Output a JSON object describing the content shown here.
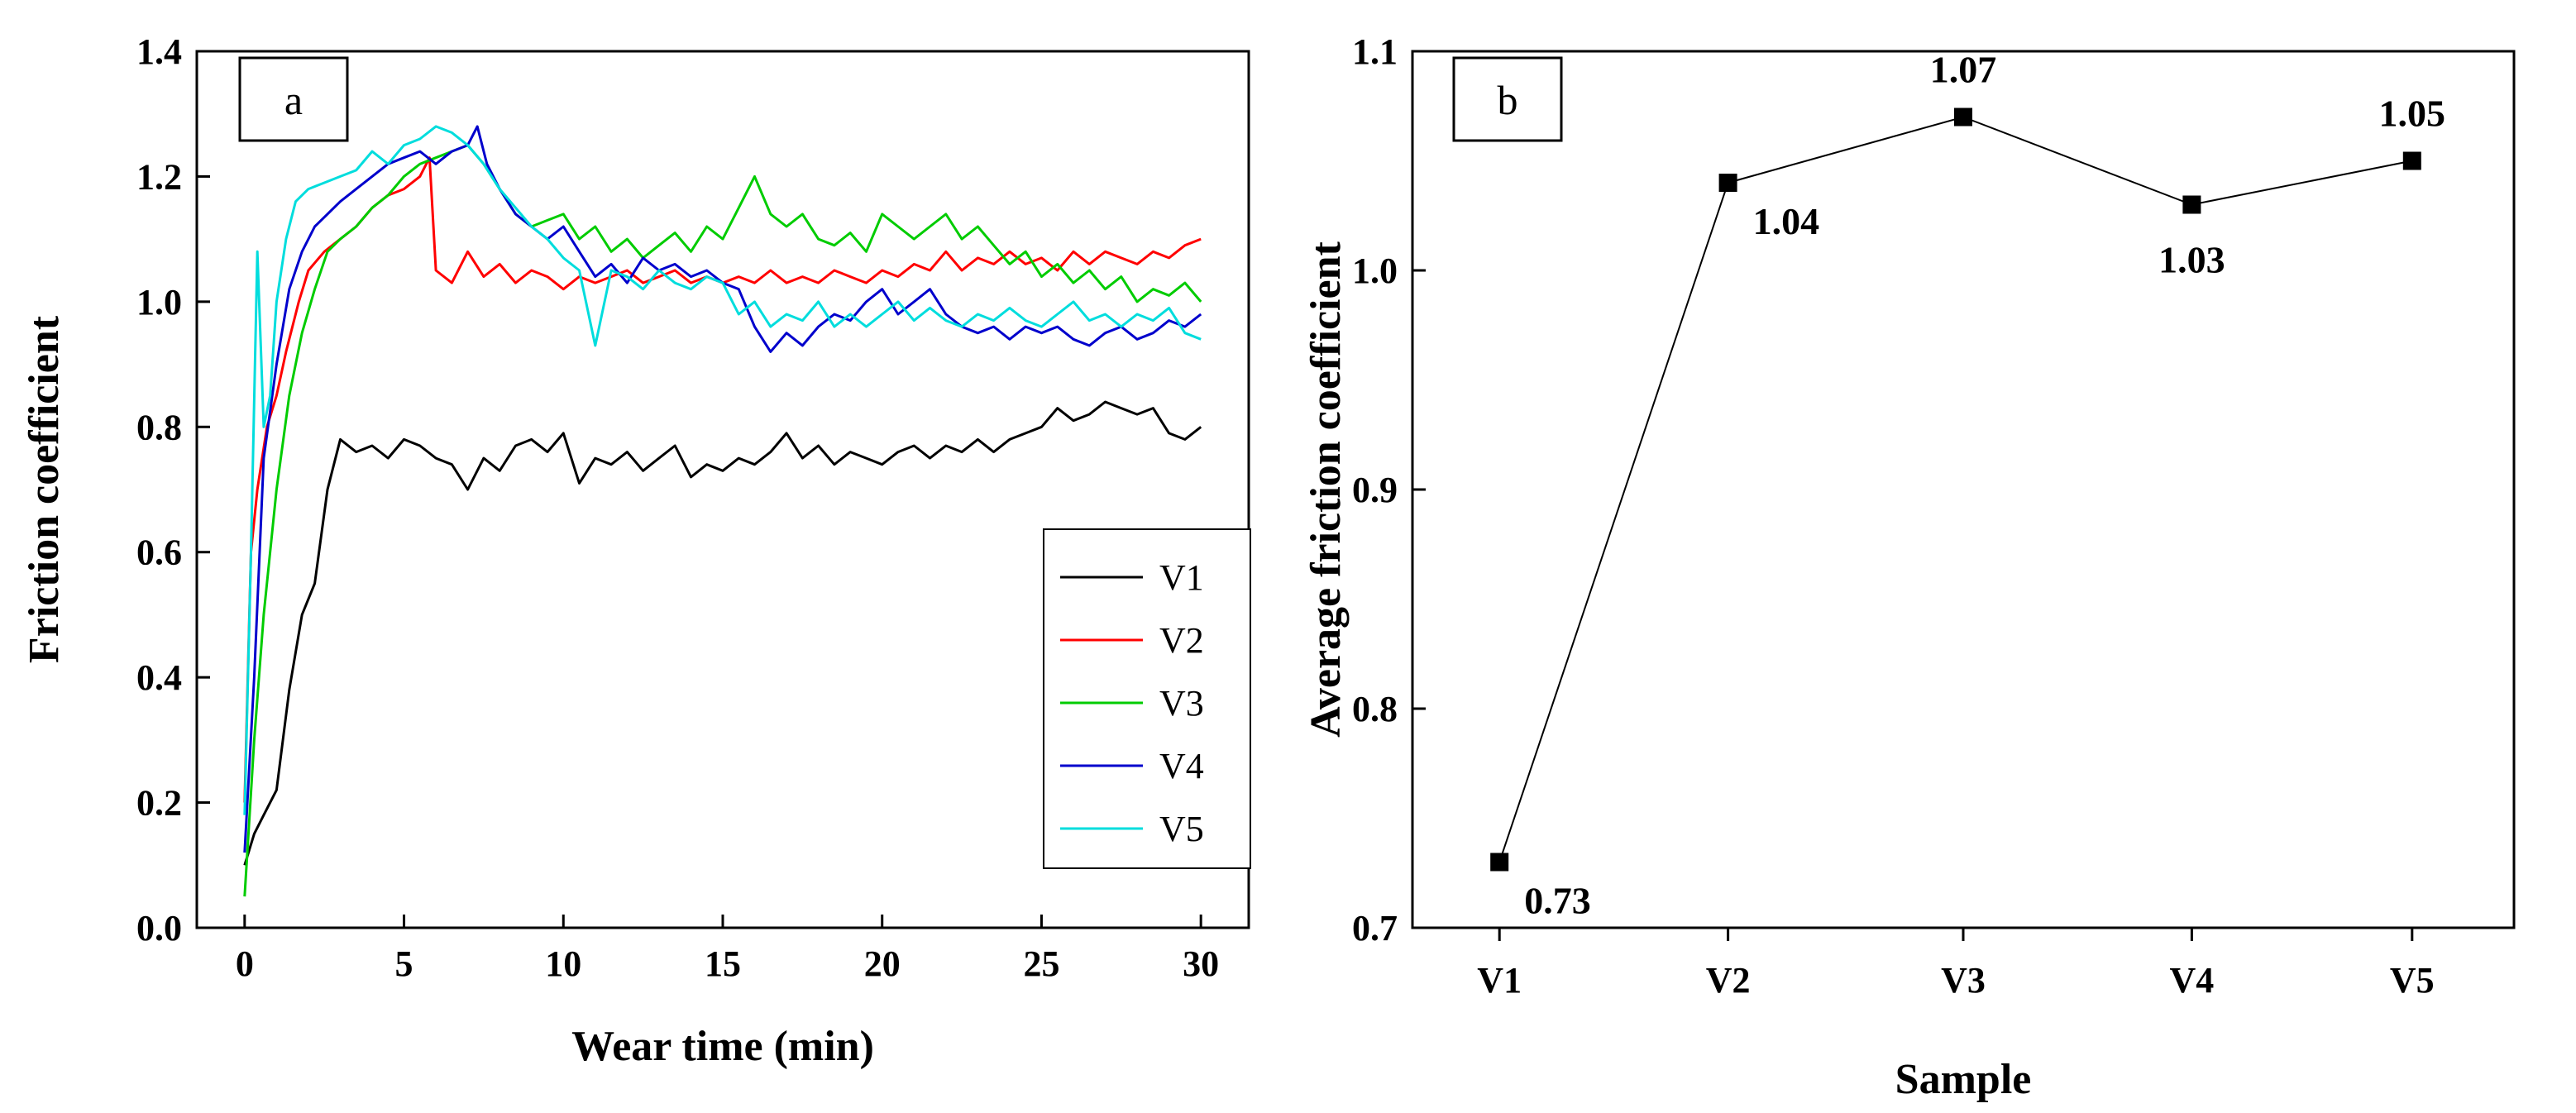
{
  "chart_data": [
    {
      "panel_label": "a",
      "type": "line",
      "xlabel": "Wear time (min)",
      "ylabel": "Friction coefficient",
      "xlim": [
        -1.5,
        31.5
      ],
      "ylim": [
        0.0,
        1.4
      ],
      "xticks": [
        "0",
        "5",
        "10",
        "15",
        "20",
        "25",
        "30"
      ],
      "yticks": [
        "0.0",
        "0.2",
        "0.4",
        "0.6",
        "0.8",
        "1.0",
        "1.2",
        "1.4"
      ],
      "legend_position": "right-middle",
      "series": [
        {
          "name": "V1",
          "color": "#000000",
          "x": [
            0,
            0.3,
            0.6,
            1.0,
            1.4,
            1.8,
            2.2,
            2.6,
            3.0,
            3.5,
            4,
            4.5,
            5,
            5.5,
            6,
            6.5,
            7,
            7.5,
            8,
            8.5,
            9,
            9.5,
            10,
            10.5,
            11,
            11.5,
            12,
            12.5,
            13,
            13.5,
            14,
            14.5,
            15,
            15.5,
            16,
            16.5,
            17,
            17.5,
            18,
            18.5,
            19,
            19.5,
            20,
            20.5,
            21,
            21.5,
            22,
            22.5,
            23,
            23.5,
            24,
            24.5,
            25,
            25.5,
            26,
            26.5,
            27,
            27.5,
            28,
            28.5,
            29,
            29.5,
            30
          ],
          "y": [
            0.1,
            0.15,
            0.18,
            0.22,
            0.38,
            0.5,
            0.55,
            0.7,
            0.78,
            0.76,
            0.77,
            0.75,
            0.78,
            0.77,
            0.75,
            0.74,
            0.7,
            0.75,
            0.73,
            0.77,
            0.78,
            0.76,
            0.79,
            0.71,
            0.75,
            0.74,
            0.76,
            0.73,
            0.75,
            0.77,
            0.72,
            0.74,
            0.73,
            0.75,
            0.74,
            0.76,
            0.79,
            0.75,
            0.77,
            0.74,
            0.76,
            0.75,
            0.74,
            0.76,
            0.77,
            0.75,
            0.77,
            0.76,
            0.78,
            0.76,
            0.78,
            0.79,
            0.8,
            0.83,
            0.81,
            0.82,
            0.84,
            0.83,
            0.82,
            0.83,
            0.79,
            0.78,
            0.8
          ]
        },
        {
          "name": "V2",
          "color": "#ff0000",
          "x": [
            0,
            0.2,
            0.4,
            0.7,
            1.0,
            1.3,
            1.7,
            2.0,
            2.5,
            3,
            3.5,
            4,
            4.5,
            5,
            5.5,
            5.8,
            6.0,
            6.5,
            7,
            7.5,
            8,
            8.5,
            9,
            9.5,
            10,
            10.5,
            11,
            11.5,
            12,
            12.5,
            13,
            13.5,
            14,
            14.5,
            15,
            15.5,
            16,
            16.5,
            17,
            17.5,
            18,
            18.5,
            19,
            19.5,
            20,
            20.5,
            21,
            21.5,
            22,
            22.5,
            23,
            23.5,
            24,
            24.5,
            25,
            25.5,
            26,
            26.5,
            27,
            27.5,
            28,
            28.5,
            29,
            29.5,
            30
          ],
          "y": [
            0.2,
            0.6,
            0.7,
            0.8,
            0.85,
            0.92,
            1.0,
            1.05,
            1.08,
            1.1,
            1.12,
            1.15,
            1.17,
            1.18,
            1.2,
            1.23,
            1.05,
            1.03,
            1.08,
            1.04,
            1.06,
            1.03,
            1.05,
            1.04,
            1.02,
            1.04,
            1.03,
            1.04,
            1.05,
            1.03,
            1.04,
            1.05,
            1.03,
            1.04,
            1.03,
            1.04,
            1.03,
            1.05,
            1.03,
            1.04,
            1.03,
            1.05,
            1.04,
            1.03,
            1.05,
            1.04,
            1.06,
            1.05,
            1.08,
            1.05,
            1.07,
            1.06,
            1.08,
            1.06,
            1.07,
            1.05,
            1.08,
            1.06,
            1.08,
            1.07,
            1.06,
            1.08,
            1.07,
            1.09,
            1.1
          ]
        },
        {
          "name": "V3",
          "color": "#00cc00",
          "x": [
            0,
            0.3,
            0.6,
            1.0,
            1.4,
            1.8,
            2.2,
            2.6,
            3,
            3.5,
            4,
            4.5,
            5,
            5.5,
            6,
            6.5,
            7,
            7.5,
            8,
            8.5,
            9,
            9.5,
            10,
            10.5,
            11,
            11.5,
            12,
            12.5,
            13,
            13.5,
            14,
            14.5,
            15,
            15.5,
            16,
            16.5,
            17,
            17.5,
            18,
            18.5,
            19,
            19.5,
            20,
            20.5,
            21,
            21.5,
            22,
            22.5,
            23,
            23.5,
            24,
            24.5,
            25,
            25.5,
            26,
            26.5,
            27,
            27.5,
            28,
            28.5,
            29,
            29.5,
            30
          ],
          "y": [
            0.05,
            0.3,
            0.5,
            0.7,
            0.85,
            0.95,
            1.02,
            1.08,
            1.1,
            1.12,
            1.15,
            1.17,
            1.2,
            1.22,
            1.23,
            1.24,
            1.25,
            1.22,
            1.18,
            1.14,
            1.12,
            1.13,
            1.14,
            1.1,
            1.12,
            1.08,
            1.1,
            1.07,
            1.09,
            1.11,
            1.08,
            1.12,
            1.1,
            1.15,
            1.2,
            1.14,
            1.12,
            1.14,
            1.1,
            1.09,
            1.11,
            1.08,
            1.14,
            1.12,
            1.1,
            1.12,
            1.14,
            1.1,
            1.12,
            1.09,
            1.06,
            1.08,
            1.04,
            1.06,
            1.03,
            1.05,
            1.02,
            1.04,
            1.0,
            1.02,
            1.01,
            1.03,
            1.0
          ]
        },
        {
          "name": "V4",
          "color": "#0000cc",
          "x": [
            0,
            0.3,
            0.6,
            1.0,
            1.4,
            1.8,
            2.2,
            2.6,
            3,
            3.5,
            4,
            4.5,
            5,
            5.5,
            6,
            6.5,
            7,
            7.3,
            7.6,
            8,
            8.5,
            9,
            9.5,
            10,
            10.5,
            11,
            11.5,
            12,
            12.5,
            13,
            13.5,
            14,
            14.5,
            15,
            15.5,
            16,
            16.5,
            17,
            17.5,
            18,
            18.5,
            19,
            19.5,
            20,
            20.5,
            21,
            21.5,
            22,
            22.5,
            23,
            23.5,
            24,
            24.5,
            25,
            25.5,
            26,
            26.5,
            27,
            27.5,
            28,
            28.5,
            29,
            29.5,
            30
          ],
          "y": [
            0.12,
            0.4,
            0.75,
            0.9,
            1.02,
            1.08,
            1.12,
            1.14,
            1.16,
            1.18,
            1.2,
            1.22,
            1.23,
            1.24,
            1.22,
            1.24,
            1.25,
            1.28,
            1.22,
            1.18,
            1.14,
            1.12,
            1.1,
            1.12,
            1.08,
            1.04,
            1.06,
            1.03,
            1.07,
            1.05,
            1.06,
            1.04,
            1.05,
            1.03,
            1.02,
            0.96,
            0.92,
            0.95,
            0.93,
            0.96,
            0.98,
            0.97,
            1.0,
            1.02,
            0.98,
            1.0,
            1.02,
            0.98,
            0.96,
            0.95,
            0.96,
            0.94,
            0.96,
            0.95,
            0.96,
            0.94,
            0.93,
            0.95,
            0.96,
            0.94,
            0.95,
            0.97,
            0.96,
            0.98
          ]
        },
        {
          "name": "V5",
          "color": "#00dddd",
          "x": [
            0,
            0.2,
            0.4,
            0.6,
            0.8,
            1.0,
            1.3,
            1.6,
            2.0,
            2.5,
            3,
            3.5,
            4,
            4.5,
            5,
            5.5,
            6,
            6.5,
            7,
            7.5,
            8,
            8.5,
            9,
            9.5,
            10,
            10.5,
            11,
            11.5,
            12,
            12.5,
            13,
            13.5,
            14,
            14.5,
            15,
            15.5,
            16,
            16.5,
            17,
            17.5,
            18,
            18.5,
            19,
            19.5,
            20,
            20.5,
            21,
            21.5,
            22,
            22.5,
            23,
            23.5,
            24,
            24.5,
            25,
            25.5,
            26,
            26.5,
            27,
            27.5,
            28,
            28.5,
            29,
            29.5,
            30
          ],
          "y": [
            0.18,
            0.6,
            1.08,
            0.8,
            0.85,
            1.0,
            1.1,
            1.16,
            1.18,
            1.19,
            1.2,
            1.21,
            1.24,
            1.22,
            1.25,
            1.26,
            1.28,
            1.27,
            1.25,
            1.22,
            1.18,
            1.15,
            1.12,
            1.1,
            1.07,
            1.05,
            0.93,
            1.05,
            1.04,
            1.02,
            1.05,
            1.03,
            1.02,
            1.04,
            1.03,
            0.98,
            1.0,
            0.96,
            0.98,
            0.97,
            1.0,
            0.96,
            0.98,
            0.96,
            0.98,
            1.0,
            0.97,
            0.99,
            0.97,
            0.96,
            0.98,
            0.97,
            0.99,
            0.97,
            0.96,
            0.98,
            1.0,
            0.97,
            0.98,
            0.96,
            0.98,
            0.97,
            0.99,
            0.95,
            0.94
          ]
        }
      ]
    },
    {
      "panel_label": "b",
      "type": "line",
      "xlabel": "Sample",
      "ylabel": "Average friction coefficient",
      "categories": [
        "V1",
        "V2",
        "V3",
        "V4",
        "V5"
      ],
      "values": [
        0.73,
        1.04,
        1.07,
        1.03,
        1.05
      ],
      "data_labels": [
        "0.73",
        "1.04",
        "1.07",
        "1.03",
        "1.05"
      ],
      "data_label_positions": [
        "below-right",
        "below-right",
        "above",
        "below",
        "above"
      ],
      "ylim": [
        0.7,
        1.1
      ],
      "yticks": [
        "0.7",
        "0.8",
        "0.9",
        "1.0",
        "1.1"
      ],
      "color": "#000000"
    }
  ]
}
